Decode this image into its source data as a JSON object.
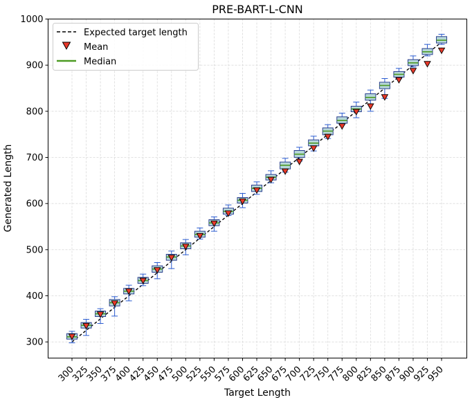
{
  "chart_data": {
    "type": "box",
    "title": "PRE-BART-L-CNN",
    "xlabel": "Target Length",
    "ylabel": "Generated Length",
    "ylim": [
      265,
      1000
    ],
    "yticks": [
      300,
      400,
      500,
      600,
      700,
      800,
      900,
      1000
    ],
    "grid": true,
    "legend_position": "top-left",
    "legend": [
      {
        "label": "Expected target length",
        "kind": "dashed-line",
        "color": "#000000"
      },
      {
        "label": "Mean",
        "kind": "triangle-marker",
        "color": "#e8392a"
      },
      {
        "label": "Median",
        "kind": "solid-line",
        "color": "#4c9a22"
      }
    ],
    "categories": [
      "300",
      "325",
      "350",
      "375",
      "400",
      "425",
      "450",
      "475",
      "500",
      "525",
      "550",
      "575",
      "600",
      "625",
      "650",
      "675",
      "700",
      "725",
      "750",
      "775",
      "800",
      "825",
      "850",
      "875",
      "900",
      "925",
      "950"
    ],
    "expected": [
      300,
      325,
      350,
      375,
      400,
      425,
      450,
      475,
      500,
      525,
      550,
      575,
      600,
      625,
      650,
      675,
      700,
      725,
      750,
      775,
      800,
      825,
      850,
      875,
      900,
      925,
      950
    ],
    "boxes": [
      {
        "target": 300,
        "whisker_low": 298,
        "q1": 306,
        "median": 311,
        "q3": 318,
        "whisker_high": 323,
        "mean": 312
      },
      {
        "target": 325,
        "whisker_low": 314,
        "q1": 330,
        "median": 336,
        "q3": 342,
        "whisker_high": 349,
        "mean": 335
      },
      {
        "target": 350,
        "whisker_low": 340,
        "q1": 355,
        "median": 361,
        "q3": 367,
        "whisker_high": 372,
        "mean": 360
      },
      {
        "target": 375,
        "whisker_low": 356,
        "q1": 378,
        "median": 385,
        "q3": 392,
        "whisker_high": 398,
        "mean": 384
      },
      {
        "target": 400,
        "whisker_low": 389,
        "q1": 404,
        "median": 410,
        "q3": 416,
        "whisker_high": 423,
        "mean": 410
      },
      {
        "target": 425,
        "whisker_low": 422,
        "q1": 427,
        "median": 433,
        "q3": 440,
        "whisker_high": 447,
        "mean": 433
      },
      {
        "target": 450,
        "whisker_low": 437,
        "q1": 451,
        "median": 458,
        "q3": 465,
        "whisker_high": 472,
        "mean": 456
      },
      {
        "target": 475,
        "whisker_low": 459,
        "q1": 477,
        "median": 484,
        "q3": 490,
        "whisker_high": 497,
        "mean": 483
      },
      {
        "target": 500,
        "whisker_low": 489,
        "q1": 502,
        "median": 508,
        "q3": 515,
        "whisker_high": 522,
        "mean": 507
      },
      {
        "target": 525,
        "whisker_low": 523,
        "q1": 527,
        "median": 533,
        "q3": 540,
        "whisker_high": 547,
        "mean": 530
      },
      {
        "target": 550,
        "whisker_low": 540,
        "q1": 552,
        "median": 558,
        "q3": 565,
        "whisker_high": 571,
        "mean": 557
      },
      {
        "target": 575,
        "whisker_low": 574,
        "q1": 577,
        "median": 583,
        "q3": 590,
        "whisker_high": 597,
        "mean": 579
      },
      {
        "target": 600,
        "whisker_low": 591,
        "q1": 601,
        "median": 607,
        "q3": 613,
        "whisker_high": 622,
        "mean": 605
      },
      {
        "target": 625,
        "whisker_low": 620,
        "q1": 626,
        "median": 633,
        "q3": 640,
        "whisker_high": 647,
        "mean": 629
      },
      {
        "target": 650,
        "whisker_low": 645,
        "q1": 651,
        "median": 657,
        "q3": 663,
        "whisker_high": 671,
        "mean": 652
      },
      {
        "target": 675,
        "whisker_low": 668,
        "q1": 675,
        "median": 683,
        "q3": 690,
        "whisker_high": 698,
        "mean": 670
      },
      {
        "target": 700,
        "whisker_low": 692,
        "q1": 700,
        "median": 707,
        "q3": 715,
        "whisker_high": 722,
        "mean": 691
      },
      {
        "target": 725,
        "whisker_low": 714,
        "q1": 725,
        "median": 731,
        "q3": 738,
        "whisker_high": 746,
        "mean": 720
      },
      {
        "target": 750,
        "whisker_low": 741,
        "q1": 749,
        "median": 757,
        "q3": 764,
        "whisker_high": 771,
        "mean": 745
      },
      {
        "target": 775,
        "whisker_low": 771,
        "q1": 774,
        "median": 780,
        "q3": 788,
        "whisker_high": 796,
        "mean": 768
      },
      {
        "target": 800,
        "whisker_low": 786,
        "q1": 799,
        "median": 805,
        "q3": 811,
        "whisker_high": 820,
        "mean": 799
      },
      {
        "target": 825,
        "whisker_low": 800,
        "q1": 824,
        "median": 830,
        "q3": 838,
        "whisker_high": 846,
        "mean": 811
      },
      {
        "target": 850,
        "whisker_low": 828,
        "q1": 849,
        "median": 856,
        "q3": 863,
        "whisker_high": 871,
        "mean": 831
      },
      {
        "target": 875,
        "whisker_low": 871,
        "q1": 874,
        "median": 880,
        "q3": 886,
        "whisker_high": 893,
        "mean": 868
      },
      {
        "target": 900,
        "whisker_low": 896,
        "q1": 899,
        "median": 905,
        "q3": 912,
        "whisker_high": 920,
        "mean": 888
      },
      {
        "target": 925,
        "whisker_low": 920,
        "q1": 923,
        "median": 929,
        "q3": 936,
        "whisker_high": 945,
        "mean": 903
      },
      {
        "target": 950,
        "whisker_low": 945,
        "q1": 948,
        "median": 954,
        "q3": 962,
        "whisker_high": 967,
        "mean": 932
      }
    ],
    "colors": {
      "box_fill": "#b6d7d8",
      "box_edge": "#2a3f8f",
      "whisker": "#2a5bd0",
      "median": "#4c9a22",
      "mean_fill": "#e8392a",
      "mean_edge": "#000000",
      "expected": "#000000",
      "grid": "#d9d9d9"
    }
  }
}
